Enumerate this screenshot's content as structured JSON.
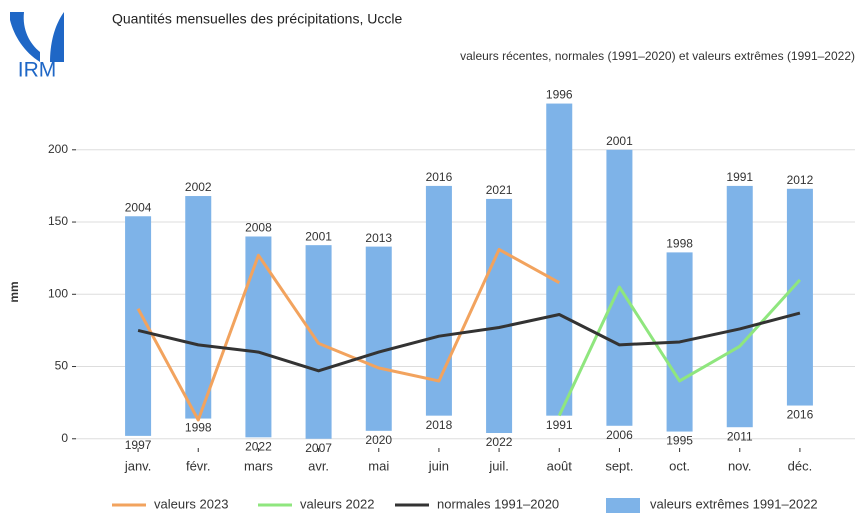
{
  "logo": "IRM",
  "chart_data": {
    "type": "bar-line",
    "title": "Quantités mensuelles des précipitations, Uccle",
    "subtitle": "valeurs récentes, normales (1991–2020) et valeurs extrêmes (1991–2022)",
    "y_label": "mm",
    "categories": [
      "janv.",
      "févr.",
      "mars",
      "avr.",
      "mai",
      "juin",
      "juil.",
      "août",
      "sept.",
      "oct.",
      "nov.",
      "déc."
    ],
    "ylim": [
      -5,
      240
    ],
    "yticks": [
      0,
      50,
      100,
      150,
      200
    ],
    "grid": true,
    "extremes": {
      "name": "valeurs extrêmes 1991–2022",
      "color": "#7eb3e8",
      "min": [
        2,
        14,
        1,
        0,
        5.5,
        16,
        4,
        16,
        9,
        5,
        8,
        23
      ],
      "max": [
        154,
        168,
        140,
        134,
        133,
        175,
        166,
        232,
        200,
        129,
        175,
        173
      ],
      "min_years": [
        "1997",
        "1998",
        "2022",
        "2007",
        "2020",
        "2018",
        "2022",
        "1991",
        "2006",
        "1995",
        "2011",
        "2016"
      ],
      "max_years": [
        "2004",
        "2002",
        "2008",
        "2001",
        "2013",
        "2016",
        "2021",
        "1996",
        "2001",
        "1998",
        "1991",
        "2012"
      ]
    },
    "series": [
      {
        "name": "valeurs 2023",
        "color": "#f2a35e",
        "values": [
          90,
          13,
          127,
          66,
          49,
          40,
          131,
          108,
          null,
          null,
          null,
          null
        ]
      },
      {
        "name": "valeurs 2022",
        "color": "#8fe67e",
        "values": [
          null,
          null,
          null,
          null,
          null,
          null,
          null,
          16,
          105,
          40,
          64,
          110
        ]
      },
      {
        "name": "normales 1991–2020",
        "color": "#333333",
        "values": [
          75,
          65,
          60,
          47,
          60,
          71,
          77,
          86,
          65,
          67,
          76,
          87
        ]
      }
    ]
  }
}
